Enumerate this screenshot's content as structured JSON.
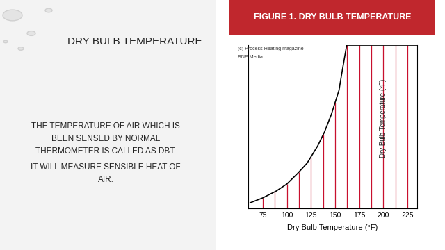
{
  "slide": {
    "title": "DRY BULB TEMPERATURE",
    "body": [
      [
        "THE TEMPERATURE OF AIR WHICH IS",
        "BEEN SENSED BY NORMAL",
        "THERMOMETER IS CALLED AS DBT."
      ],
      [
        "IT WILL MEASURE SENSIBLE HEAT OF",
        "AIR."
      ]
    ]
  },
  "chart_data": {
    "type": "line",
    "title": "FIGURE 1. DRY BULB TEMPERATURE",
    "source": [
      "(c) Process Heating magazine",
      "BNP Media"
    ],
    "x_label": "Dry Bulb Temperature (°F)",
    "annotation": "Dry Bulb Temperature (°F)",
    "x": [
      62,
      75,
      89,
      100,
      111,
      121,
      132,
      139,
      146,
      154,
      157,
      162,
      235
    ],
    "values": [
      3.4,
      6.4,
      10.6,
      14.9,
      21.3,
      27.7,
      38.3,
      46.8,
      57.4,
      72.3,
      83,
      100,
      100
    ],
    "color": "#000000",
    "drop_lines": {
      "x": [
        75,
        87.5,
        100,
        112.5,
        125,
        137.5,
        150,
        162.5,
        175,
        187.5,
        200,
        212.5,
        225
      ],
      "color": "#c8102e"
    },
    "xlim": [
      60,
      235
    ],
    "xticks": [
      75,
      100,
      125,
      150,
      175,
      200,
      225
    ],
    "ylim": [
      0,
      100
    ],
    "tick_labels": "x",
    "grid": false
  }
}
